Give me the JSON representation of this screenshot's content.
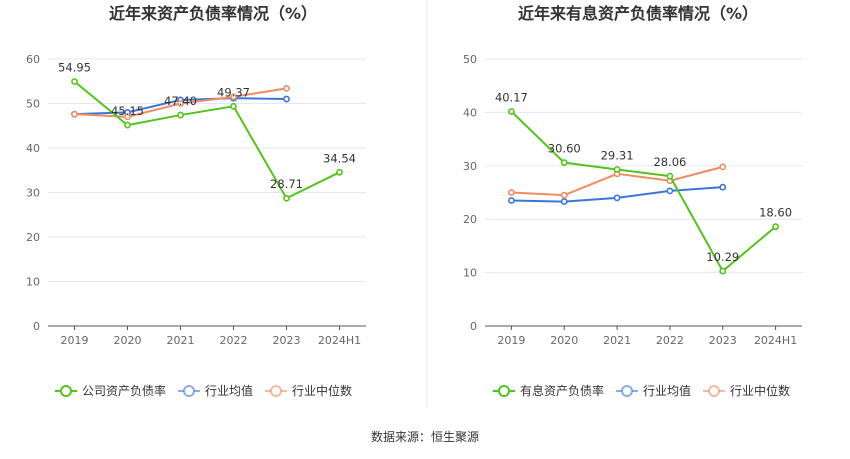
{
  "colors": {
    "company": "#52c41a",
    "industry_avg": "#3a76d8",
    "industry_median": "#f08c64",
    "grid": "#e6e6f0",
    "axis": "#555555",
    "tick": "#666666",
    "title": "#333333",
    "label": "#333333"
  },
  "source": "数据来源：恒生聚源",
  "chart_data": [
    {
      "type": "line",
      "title": "近年来资产负债率情况（%）",
      "categories": [
        "2019",
        "2020",
        "2021",
        "2022",
        "2023",
        "2024H1"
      ],
      "ylim": [
        0,
        60
      ],
      "yticks": [
        0,
        10,
        20,
        30,
        40,
        50,
        60
      ],
      "grid": true,
      "legend_position": "bottom-center",
      "series": [
        {
          "name": "公司资产负债率",
          "role": "company",
          "values": [
            54.95,
            45.15,
            47.4,
            49.37,
            28.71,
            34.54
          ],
          "labels": [
            "54.95",
            "45.15",
            "47.40",
            "49.37",
            "28.71",
            "34.54"
          ]
        },
        {
          "name": "行业均值",
          "role": "industry_avg",
          "values": [
            47.6,
            48.0,
            50.8,
            51.2,
            51.0,
            null
          ]
        },
        {
          "name": "行业中位数",
          "role": "industry_median",
          "values": [
            47.6,
            47.0,
            50.0,
            51.5,
            53.4,
            null
          ]
        }
      ]
    },
    {
      "type": "line",
      "title": "近年来有息资产负债率情况（%）",
      "categories": [
        "2019",
        "2020",
        "2021",
        "2022",
        "2023",
        "2024H1"
      ],
      "ylim": [
        0,
        50
      ],
      "yticks": [
        0,
        10,
        20,
        30,
        40,
        50
      ],
      "grid": true,
      "legend_position": "bottom-center",
      "series": [
        {
          "name": "有息资产负债率",
          "role": "company",
          "values": [
            40.17,
            30.6,
            29.31,
            28.06,
            10.29,
            18.6
          ],
          "labels": [
            "40.17",
            "30.60",
            "29.31",
            "28.06",
            "10.29",
            "18.60"
          ]
        },
        {
          "name": "行业均值",
          "role": "industry_avg",
          "values": [
            23.5,
            23.3,
            24.0,
            25.3,
            26.0,
            null
          ]
        },
        {
          "name": "行业中位数",
          "role": "industry_median",
          "values": [
            25.0,
            24.5,
            28.5,
            27.2,
            29.8,
            null
          ]
        }
      ]
    }
  ]
}
